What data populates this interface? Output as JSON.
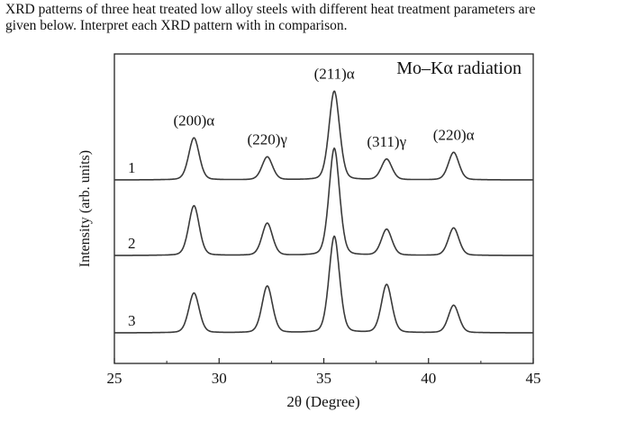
{
  "question": {
    "line1": "XRD patterns of three heat treated low alloy steels with different heat treatment parameters are",
    "line2": "given below. Interpret each XRD pattern with in comparison."
  },
  "chart_data": {
    "type": "line",
    "title": "Mo–Kα radiation",
    "xlabel": "2θ (Degree)",
    "ylabel": "Intensity (arb. units)",
    "xlim": [
      25,
      45
    ],
    "xticks": [
      25,
      30,
      35,
      40,
      45
    ],
    "x_tick_labels": [
      "25",
      "30",
      "35",
      "40",
      "45"
    ],
    "peak_labels": [
      {
        "text": "(200)α",
        "x": 28.8
      },
      {
        "text": "(220)γ",
        "x": 32.3
      },
      {
        "text": "(211)α",
        "x": 35.5
      },
      {
        "text": "(311)γ",
        "x": 38.0
      },
      {
        "text": "(220)α",
        "x": 41.2
      }
    ],
    "series": [
      {
        "name": "1",
        "baseline": 2.0,
        "peaks": [
          {
            "x": 28.8,
            "height": 0.55
          },
          {
            "x": 32.3,
            "height": 0.3
          },
          {
            "x": 35.5,
            "height": 1.16
          },
          {
            "x": 38.0,
            "height": 0.27
          },
          {
            "x": 41.2,
            "height": 0.36
          }
        ]
      },
      {
        "name": "2",
        "baseline": 1.0,
        "peaks": [
          {
            "x": 28.8,
            "height": 0.65
          },
          {
            "x": 32.3,
            "height": 0.42
          },
          {
            "x": 35.5,
            "height": 1.4
          },
          {
            "x": 38.0,
            "height": 0.34
          },
          {
            "x": 41.2,
            "height": 0.36
          }
        ]
      },
      {
        "name": "3",
        "baseline": 0.0,
        "peaks": [
          {
            "x": 28.8,
            "height": 0.52
          },
          {
            "x": 32.3,
            "height": 0.61
          },
          {
            "x": 35.5,
            "height": 1.26
          },
          {
            "x": 38.0,
            "height": 0.63
          },
          {
            "x": 41.2,
            "height": 0.36
          }
        ]
      }
    ],
    "peak_width_deg": 0.26,
    "grid": false,
    "line_color": "#3a3a3a"
  }
}
